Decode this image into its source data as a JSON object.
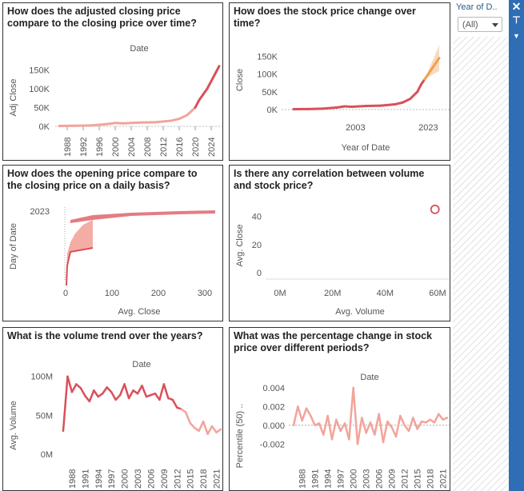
{
  "filter": {
    "title": "Year of D..",
    "selected": "(All)"
  },
  "colors": {
    "primary": "#d9505a",
    "light": "#f2a49b",
    "orange": "#f0a050",
    "band": "#f8d3b4",
    "frame": "#2f6db4"
  },
  "sidebar_icons": [
    "close-icon",
    "pin-icon",
    "chevron-down-icon"
  ],
  "tiles": {
    "t1": {
      "title1": "How does the adjusted closing price",
      "title2": "compare to the closing price over time?",
      "header": "Date",
      "ylabel": "Adj Close",
      "yticks": [
        "150K",
        "100K",
        "50K",
        "0K"
      ],
      "xticks": [
        "1988",
        "1992",
        "1996",
        "2000",
        "2004",
        "2008",
        "2012",
        "2016",
        "2020",
        "2024"
      ]
    },
    "t2": {
      "title1": "How does the stock price change over",
      "title2": "time?",
      "ylabel": "Close",
      "yticks": [
        "150K",
        "100K",
        "50K",
        "0K"
      ],
      "xticks": [
        "2003",
        "2023"
      ],
      "xlabel": "Year of Date"
    },
    "t3": {
      "title1": "How does the opening price compare to",
      "title2": "the closing price on a daily basis?",
      "ylabel": "Day of Date",
      "ytick": "2023",
      "xticks": [
        "0",
        "100",
        "200",
        "300"
      ],
      "xlabel": "Avg. Close"
    },
    "t4": {
      "title1": "Is there any correlation between volume",
      "title2": "and stock price?",
      "ylabel": "Avg. Close",
      "yticks": [
        "40",
        "20",
        "0"
      ],
      "xticks": [
        "0M",
        "20M",
        "40M",
        "60M"
      ],
      "xlabel": "Avg. Volume"
    },
    "t5": {
      "title1": "What is the volume trend over the years?",
      "header": "Date",
      "ylabel": "Avg. Volume",
      "yticks": [
        "100M",
        "50M",
        "0M"
      ],
      "xticks": [
        "1988",
        "1991",
        "1994",
        "1997",
        "2000",
        "2003",
        "2006",
        "2009",
        "2012",
        "2015",
        "2018",
        "2021"
      ]
    },
    "t6": {
      "title1": "What was the percentage change in stock",
      "title2": "price over different periods?",
      "header": "Date",
      "ylabel": "Percentile (50) ..",
      "yticks": [
        "0.004",
        "0.002",
        "0.000",
        "-0.002"
      ],
      "xticks": [
        "1988",
        "1991",
        "1994",
        "1997",
        "2000",
        "2003",
        "2006",
        "2009",
        "2012",
        "2015",
        "2018",
        "2021"
      ]
    }
  },
  "chart_data": [
    {
      "type": "line",
      "title": "How does the adjusted closing price compare to the closing price over time?",
      "header": "Date",
      "ylabel": "Adj Close",
      "ylim": [
        0,
        170000
      ],
      "x": [
        1986,
        1990,
        1994,
        1998,
        2000,
        2002,
        2006,
        2010,
        2014,
        2016,
        2018,
        2020,
        2021,
        2022,
        2023,
        2024,
        2025,
        2026
      ],
      "y": [
        1000,
        1500,
        2500,
        6000,
        9000,
        8000,
        10000,
        11000,
        15000,
        20000,
        30000,
        50000,
        70000,
        85000,
        100000,
        120000,
        140000,
        160000
      ]
    },
    {
      "type": "line",
      "title": "How does the stock price change over time?",
      "xlabel": "Year of Date",
      "ylabel": "Close",
      "ylim": [
        0,
        180000
      ],
      "x": [
        1986,
        1990,
        1994,
        1998,
        2000,
        2002,
        2006,
        2010,
        2014,
        2016,
        2018,
        2020,
        2021,
        2022
      ],
      "y": [
        1000,
        1500,
        2500,
        6000,
        9000,
        8000,
        10000,
        11000,
        15000,
        20000,
        30000,
        50000,
        70000,
        85000
      ],
      "forecast_x": [
        2022,
        2023,
        2024,
        2025,
        2026
      ],
      "forecast_y": [
        85000,
        100000,
        115000,
        130000,
        145000
      ]
    },
    {
      "type": "area",
      "title": "How does the opening price compare to the closing price on a daily basis?",
      "xlabel": "Avg. Close",
      "ylabel": "Day of Date",
      "xlim": [
        0,
        350
      ],
      "points": [
        [
          2,
          150
        ],
        [
          5,
          130
        ],
        [
          10,
          110
        ],
        [
          20,
          100
        ],
        [
          40,
          95
        ],
        [
          60,
          90
        ],
        [
          100,
          80
        ],
        [
          150,
          65
        ],
        [
          200,
          50
        ],
        [
          250,
          35
        ],
        [
          300,
          20
        ],
        [
          340,
          15
        ]
      ]
    },
    {
      "type": "scatter",
      "title": "Is there any correlation between volume and stock price?",
      "xlabel": "Avg. Volume",
      "ylabel": "Avg. Close",
      "xlim": [
        0,
        60000000
      ],
      "ylim": [
        0,
        50
      ],
      "points": [
        [
          59000000,
          45
        ]
      ]
    },
    {
      "type": "line",
      "title": "What is the volume trend over the years?",
      "header": "Date",
      "ylabel": "Avg. Volume",
      "ylim": [
        0,
        110000000
      ],
      "x": [
        1986,
        1987,
        1988,
        1989,
        1990,
        1991,
        1992,
        1993,
        1994,
        1995,
        1996,
        1997,
        1998,
        1999,
        2000,
        2001,
        2002,
        2003,
        2004,
        2005,
        2006,
        2007,
        2008,
        2009,
        2010,
        2011,
        2012,
        2013,
        2014,
        2015,
        2016,
        2017,
        2018,
        2019,
        2020,
        2021,
        2022
      ],
      "y": [
        30000000,
        100000000,
        80000000,
        90000000,
        85000000,
        75000000,
        68000000,
        82000000,
        74000000,
        78000000,
        86000000,
        80000000,
        70000000,
        76000000,
        90000000,
        72000000,
        82000000,
        78000000,
        88000000,
        74000000,
        76000000,
        78000000,
        70000000,
        90000000,
        72000000,
        70000000,
        60000000,
        58000000,
        54000000,
        40000000,
        34000000,
        30000000,
        42000000,
        26000000,
        36000000,
        28000000,
        32000000
      ]
    },
    {
      "type": "line",
      "title": "What was the percentage change in stock price over different periods?",
      "header": "Date",
      "ylabel": "Percentile (50) ..",
      "ylim": [
        -0.003,
        0.0045
      ],
      "x": [
        1986,
        1987,
        1988,
        1989,
        1990,
        1991,
        1992,
        1993,
        1994,
        1995,
        1996,
        1997,
        1998,
        1999,
        2000,
        2001,
        2002,
        2003,
        2004,
        2005,
        2006,
        2007,
        2008,
        2009,
        2010,
        2011,
        2012,
        2013,
        2014,
        2015,
        2016,
        2017,
        2018,
        2019,
        2020,
        2021,
        2022
      ],
      "y": [
        0.0,
        0.002,
        0.0005,
        0.0018,
        0.001,
        0.0,
        0.0002,
        -0.001,
        0.001,
        -0.0015,
        0.0006,
        -0.0006,
        0.0002,
        -0.0015,
        0.004,
        -0.002,
        0.0008,
        -0.0008,
        0.0003,
        -0.001,
        0.0012,
        -0.0018,
        0.0004,
        -0.0002,
        -0.0012,
        0.001,
        0.0,
        -0.0006,
        0.0008,
        -0.0004,
        0.0004,
        0.0003,
        0.0006,
        0.0003,
        0.0012,
        0.0006,
        0.0008
      ]
    }
  ]
}
